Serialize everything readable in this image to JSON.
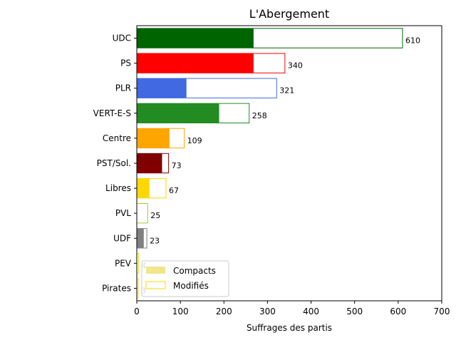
{
  "chart_data": {
    "type": "bar",
    "orientation": "horizontal",
    "title": "L'Abergement",
    "xlabel": "Suffrages des partis",
    "ylabel": "",
    "xlim": [
      0,
      700
    ],
    "xticks": [
      "0",
      "100",
      "200",
      "300",
      "400",
      "500",
      "600",
      "700"
    ],
    "grid": false,
    "legend_position": "lower-left",
    "legend": [
      {
        "label": "Compacts",
        "color": "#f0e68c",
        "style": "filled"
      },
      {
        "label": "Modifiés",
        "color": "#ffd700",
        "style": "outline"
      }
    ],
    "categories": [
      "UDC",
      "PS",
      "PLR",
      "VERT-E-S",
      "Centre",
      "PST/Sol.",
      "Libres",
      "PVL",
      "UDF",
      "PEV",
      "Pirates"
    ],
    "series": [
      {
        "name": "Compacts",
        "values": [
          268,
          268,
          114,
          189,
          75,
          58,
          29,
          0,
          16,
          0,
          0
        ]
      },
      {
        "name": "Total",
        "values": [
          610,
          340,
          321,
          258,
          109,
          73,
          67,
          25,
          23,
          4,
          3
        ]
      }
    ],
    "labels": [
      "610",
      "340",
      "321",
      "258",
      "109",
      "73",
      "67",
      "25",
      "23",
      "4",
      "3"
    ],
    "colors": [
      "#006400",
      "#ff0000",
      "#4169e1",
      "#228b22",
      "#ffa500",
      "#800000",
      "#ffd700",
      "#9acd32",
      "#808080",
      "#ffd700",
      "#ffd700"
    ]
  }
}
